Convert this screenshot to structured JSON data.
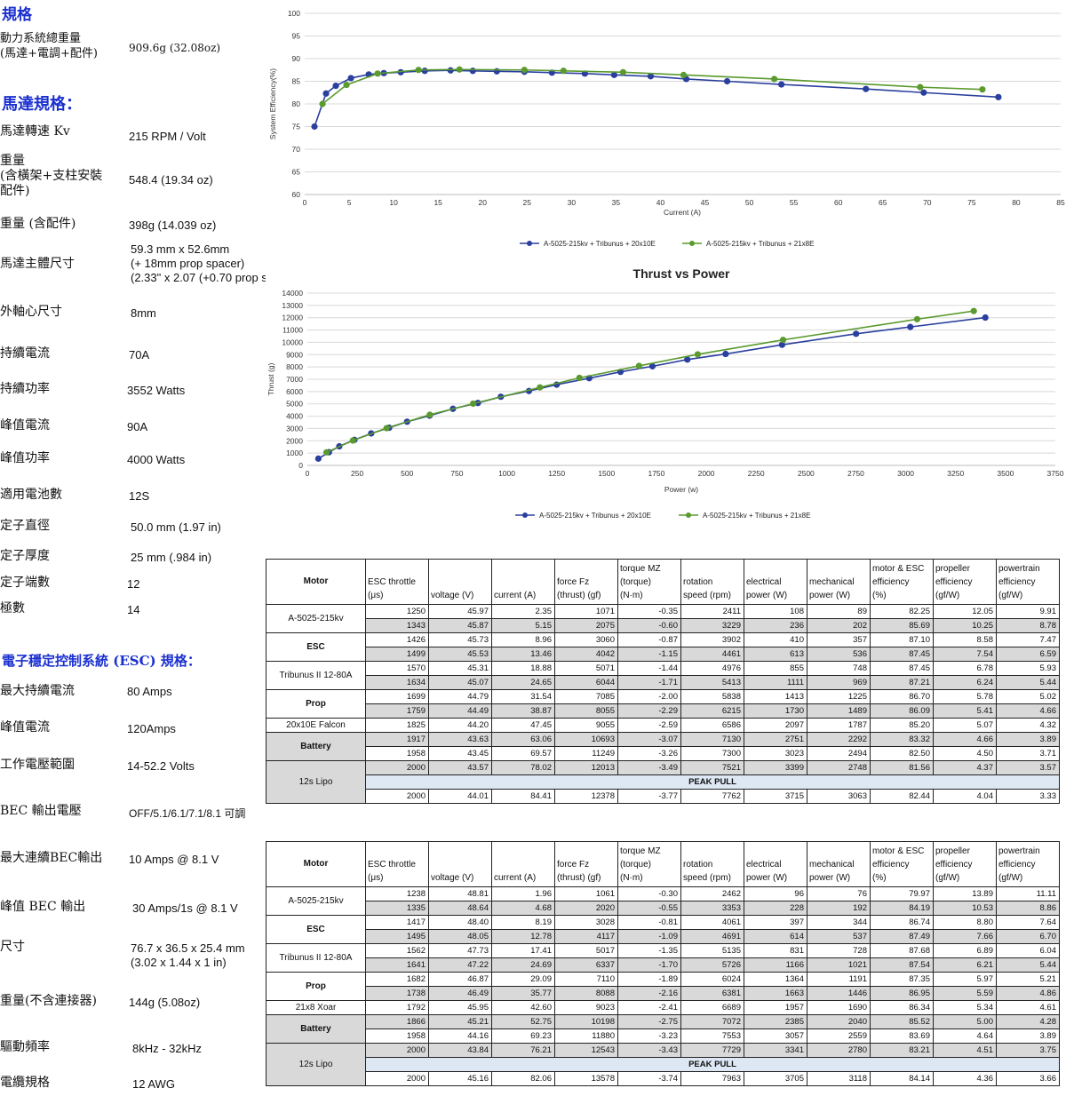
{
  "specs": {
    "heading": "規格",
    "total_weight_label": "動力系統總重量\n(馬達+電調+配件)",
    "total_weight_value": "909.6g (32.08oz)",
    "motor_heading": "馬達規格：",
    "motor_rows": [
      {
        "label": "馬達轉速 Kv",
        "value": "215 RPM / Volt"
      },
      {
        "label": "重量\n(含橫架+支柱安裝\n配件)",
        "value": "548.4 (19.34 oz)"
      },
      {
        "label": "重量 (含配件)",
        "value": "398g (14.039 oz)"
      },
      {
        "label": "馬達主體尺寸",
        "value": "59.3 mm x 52.6mm\n(+ 18mm prop spacer)\n(2.33\" x 2.07 (+0.70 prop s"
      },
      {
        "label": "外軸心尺寸",
        "value": "8mm"
      },
      {
        "label": "持續電流",
        "value": "70A"
      },
      {
        "label": "持續功率",
        "value": "3552 Watts"
      },
      {
        "label": "峰值電流",
        "value": "90A"
      },
      {
        "label": "峰值功率",
        "value": "4000 Watts"
      },
      {
        "label": "適用電池數",
        "value": "12S"
      },
      {
        "label": "定子直徑",
        "value": "50.0 mm (1.97 in)"
      },
      {
        "label": "定子厚度",
        "value": "25 mm (.984 in)"
      },
      {
        "label": "定子端數",
        "value": "12"
      },
      {
        "label": "極數",
        "value": "14"
      }
    ],
    "esc_heading": "電子穩定控制系統 (ESC) 規格：",
    "esc_rows": [
      {
        "label": "最大持續電流",
        "value": "80 Amps"
      },
      {
        "label": "峰值電流",
        "value": "120Amps"
      },
      {
        "label": "工作電壓範圍",
        "value": "14-52.2 Volts"
      },
      {
        "label": "BEC 輸出電壓",
        "value": "OFF/5.1/6.1/7.1/8.1 可調"
      },
      {
        "label": "最大連續BEC輸出",
        "value": "10 Amps @ 8.1 V"
      },
      {
        "label": "峰值 BEC 輸出",
        "value": "30 Amps/1s @ 8.1 V"
      },
      {
        "label": "尺寸",
        "value": "76.7 x 36.5 x 25.4 mm\n(3.02 x 1.44 x 1 in)"
      },
      {
        "label": "重量(不含連接器)",
        "value": "144g (5.08oz)"
      },
      {
        "label": "驅動頻率",
        "value": "8kHz - 32kHz"
      },
      {
        "label": "電纜規格",
        "value": "12 AWG"
      }
    ]
  },
  "colors": {
    "blue_series": "#2a3f9e",
    "green_series": "#5a9a2e",
    "heading_blue": "#1a2fd0",
    "row_gray": "#d9d9d9"
  },
  "chart_data": [
    {
      "type": "line",
      "title": "",
      "xlabel": "Current (A)",
      "ylabel": "System Efficiency(%)",
      "xlim": [
        0,
        85
      ],
      "ylim": [
        60,
        100
      ],
      "xticks": [
        0,
        5,
        10,
        15,
        20,
        25,
        30,
        35,
        40,
        45,
        50,
        55,
        60,
        65,
        70,
        75,
        80,
        85
      ],
      "yticks": [
        60,
        65,
        70,
        75,
        80,
        85,
        90,
        95,
        100
      ],
      "grid": true,
      "legend_position": "bottom",
      "series": [
        {
          "name": "A-5025-215kv + Tribunus + 20x10E",
          "color": "#2a3f9e",
          "x": [
            1.1,
            2.4,
            3.5,
            5.2,
            7.2,
            8.9,
            10.8,
            13.5,
            16.4,
            18.9,
            21.6,
            24.7,
            27.8,
            31.5,
            34.8,
            38.9,
            42.9,
            47.5,
            53.6,
            63.1,
            69.6,
            78.0
          ],
          "y": [
            75.0,
            82.3,
            84.0,
            85.7,
            86.5,
            86.8,
            87.0,
            87.3,
            87.4,
            87.3,
            87.2,
            87.1,
            86.9,
            86.7,
            86.4,
            86.1,
            85.5,
            85.0,
            84.3,
            83.3,
            82.5,
            81.5
          ]
        },
        {
          "name": "A-5025-215kv + Tribunus + 21x8E",
          "color": "#5a9a2e",
          "x": [
            2.0,
            4.7,
            8.2,
            12.8,
            17.4,
            24.7,
            29.1,
            35.8,
            42.6,
            52.8,
            69.2,
            76.2
          ],
          "y": [
            80.0,
            84.2,
            86.7,
            87.5,
            87.6,
            87.5,
            87.3,
            87.0,
            86.4,
            85.5,
            83.7,
            83.2
          ]
        }
      ]
    },
    {
      "type": "line",
      "title": "Thrust  vs Power",
      "xlabel": "Power (w)",
      "ylabel": "Thrust (g)",
      "xlim": [
        0,
        3750
      ],
      "ylim": [
        0,
        14000
      ],
      "xticks": [
        0,
        250,
        500,
        750,
        1000,
        1250,
        1500,
        1750,
        2000,
        2250,
        2500,
        2750,
        3000,
        3250,
        3500,
        3750
      ],
      "yticks": [
        0,
        1000,
        2000,
        3000,
        4000,
        5000,
        6000,
        7000,
        8000,
        9000,
        10000,
        11000,
        12000,
        13000,
        14000
      ],
      "grid": true,
      "legend_position": "bottom",
      "series": [
        {
          "name": "A-5025-215kv + Tribunus + 20x10E",
          "color": "#2a3f9e",
          "x": [
            55,
            108,
            160,
            236,
            320,
            410,
            500,
            613,
            730,
            855,
            970,
            1111,
            1250,
            1413,
            1570,
            1730,
            1905,
            2097,
            2380,
            2751,
            3023,
            3399
          ],
          "y": [
            550,
            1071,
            1550,
            2075,
            2600,
            3060,
            3550,
            4042,
            4600,
            5071,
            5580,
            6044,
            6560,
            7085,
            7600,
            8055,
            8600,
            9055,
            9800,
            10693,
            11249,
            12013
          ]
        },
        {
          "name": "A-5025-215kv + Tribunus + 21x8E",
          "color": "#5a9a2e",
          "x": [
            96,
            228,
            397,
            614,
            831,
            1166,
            1364,
            1663,
            1957,
            2385,
            3057,
            3341
          ],
          "y": [
            1061,
            2020,
            3028,
            4117,
            5017,
            6337,
            7110,
            8088,
            9023,
            10198,
            11880,
            12543
          ]
        }
      ]
    }
  ],
  "tables": {
    "headers": [
      "Motor",
      "ESC throttle\n(μs)",
      "voltage (V)",
      "current (A)",
      "force Fz\n(thrust) (gf)",
      "torque MZ\n(torque)\n(N·m)",
      "rotation\nspeed (rpm)",
      "electrical\npower (W)",
      "mechanical\npower (W)",
      "motor & ESC\nefficiency\n(%)",
      "propeller\nefficiency\n(gf/W)",
      "powertrain\nefficiency\n(gf/W)"
    ],
    "peak_label": "PEAK PULL",
    "table1": {
      "labels": [
        "A-5025-215kv",
        "ESC",
        "Tribunus II 12-80A",
        "Prop",
        "20x10E Falcon",
        "Battery",
        "12s Lipo"
      ],
      "rows": [
        [
          "1250",
          "45.97",
          "2.35",
          "1071",
          "-0.35",
          "2411",
          "108",
          "89",
          "82.25",
          "12.05",
          "9.91"
        ],
        [
          "1343",
          "45.87",
          "5.15",
          "2075",
          "-0.60",
          "3229",
          "236",
          "202",
          "85.69",
          "10.25",
          "8.78"
        ],
        [
          "1426",
          "45.73",
          "8.96",
          "3060",
          "-0.87",
          "3902",
          "410",
          "357",
          "87.10",
          "8.58",
          "7.47"
        ],
        [
          "1499",
          "45.53",
          "13.46",
          "4042",
          "-1.15",
          "4461",
          "613",
          "536",
          "87.45",
          "7.54",
          "6.59"
        ],
        [
          "1570",
          "45.31",
          "18.88",
          "5071",
          "-1.44",
          "4976",
          "855",
          "748",
          "87.45",
          "6.78",
          "5.93"
        ],
        [
          "1634",
          "45.07",
          "24.65",
          "6044",
          "-1.71",
          "5413",
          "1111",
          "969",
          "87.21",
          "6.24",
          "5.44"
        ],
        [
          "1699",
          "44.79",
          "31.54",
          "7085",
          "-2.00",
          "5838",
          "1413",
          "1225",
          "86.70",
          "5.78",
          "5.02"
        ],
        [
          "1759",
          "44.49",
          "38.87",
          "8055",
          "-2.29",
          "6215",
          "1730",
          "1489",
          "86.09",
          "5.41",
          "4.66"
        ],
        [
          "1825",
          "44.20",
          "47.45",
          "9055",
          "-2.59",
          "6586",
          "2097",
          "1787",
          "85.20",
          "5.07",
          "4.32"
        ],
        [
          "1917",
          "43.63",
          "63.06",
          "10693",
          "-3.07",
          "7130",
          "2751",
          "2292",
          "83.32",
          "4.66",
          "3.89"
        ],
        [
          "1958",
          "43.45",
          "69.57",
          "11249",
          "-3.26",
          "7300",
          "3023",
          "2494",
          "82.50",
          "4.50",
          "3.71"
        ],
        [
          "2000",
          "43.57",
          "78.02",
          "12013",
          "-3.49",
          "7521",
          "3399",
          "2748",
          "81.56",
          "4.37",
          "3.57"
        ]
      ],
      "peak_row": [
        "2000",
        "44.01",
        "84.41",
        "12378",
        "-3.77",
        "7762",
        "3715",
        "3063",
        "82.44",
        "4.04",
        "3.33"
      ]
    },
    "table2": {
      "labels": [
        "A-5025-215kv",
        "ESC",
        "Tribunus II 12-80A",
        "Prop",
        "21x8 Xoar",
        "Battery",
        "12s Lipo"
      ],
      "rows": [
        [
          "1238",
          "48.81",
          "1.96",
          "1061",
          "-0.30",
          "2462",
          "96",
          "76",
          "79.97",
          "13.89",
          "11.11"
        ],
        [
          "1335",
          "48.64",
          "4.68",
          "2020",
          "-0.55",
          "3353",
          "228",
          "192",
          "84.19",
          "10.53",
          "8.86"
        ],
        [
          "1417",
          "48.40",
          "8.19",
          "3028",
          "-0.81",
          "4061",
          "397",
          "344",
          "86.74",
          "8.80",
          "7.64"
        ],
        [
          "1495",
          "48.05",
          "12.78",
          "4117",
          "-1.09",
          "4691",
          "614",
          "537",
          "87.49",
          "7.66",
          "6.70"
        ],
        [
          "1562",
          "47.73",
          "17.41",
          "5017",
          "-1.35",
          "5135",
          "831",
          "728",
          "87.68",
          "6.89",
          "6.04"
        ],
        [
          "1641",
          "47.22",
          "24.69",
          "6337",
          "-1.70",
          "5726",
          "1166",
          "1021",
          "87.54",
          "6.21",
          "5.44"
        ],
        [
          "1682",
          "46.87",
          "29.09",
          "7110",
          "-1.89",
          "6024",
          "1364",
          "1191",
          "87.35",
          "5.97",
          "5.21"
        ],
        [
          "1738",
          "46.49",
          "35.77",
          "8088",
          "-2.16",
          "6381",
          "1663",
          "1446",
          "86.95",
          "5.59",
          "4.86"
        ],
        [
          "1792",
          "45.95",
          "42.60",
          "9023",
          "-2.41",
          "6689",
          "1957",
          "1690",
          "86.34",
          "5.34",
          "4.61"
        ],
        [
          "1866",
          "45.21",
          "52.75",
          "10198",
          "-2.75",
          "7072",
          "2385",
          "2040",
          "85.52",
          "5.00",
          "4.28"
        ],
        [
          "1958",
          "44.16",
          "69.23",
          "11880",
          "-3.23",
          "7553",
          "3057",
          "2559",
          "83.69",
          "4.64",
          "3.89"
        ],
        [
          "2000",
          "43.84",
          "76.21",
          "12543",
          "-3.43",
          "7729",
          "3341",
          "2780",
          "83.21",
          "4.51",
          "3.75"
        ]
      ],
      "peak_row": [
        "2000",
        "45.16",
        "82.06",
        "13578",
        "-3.74",
        "7963",
        "3705",
        "3118",
        "84.14",
        "4.36",
        "3.66"
      ]
    }
  }
}
